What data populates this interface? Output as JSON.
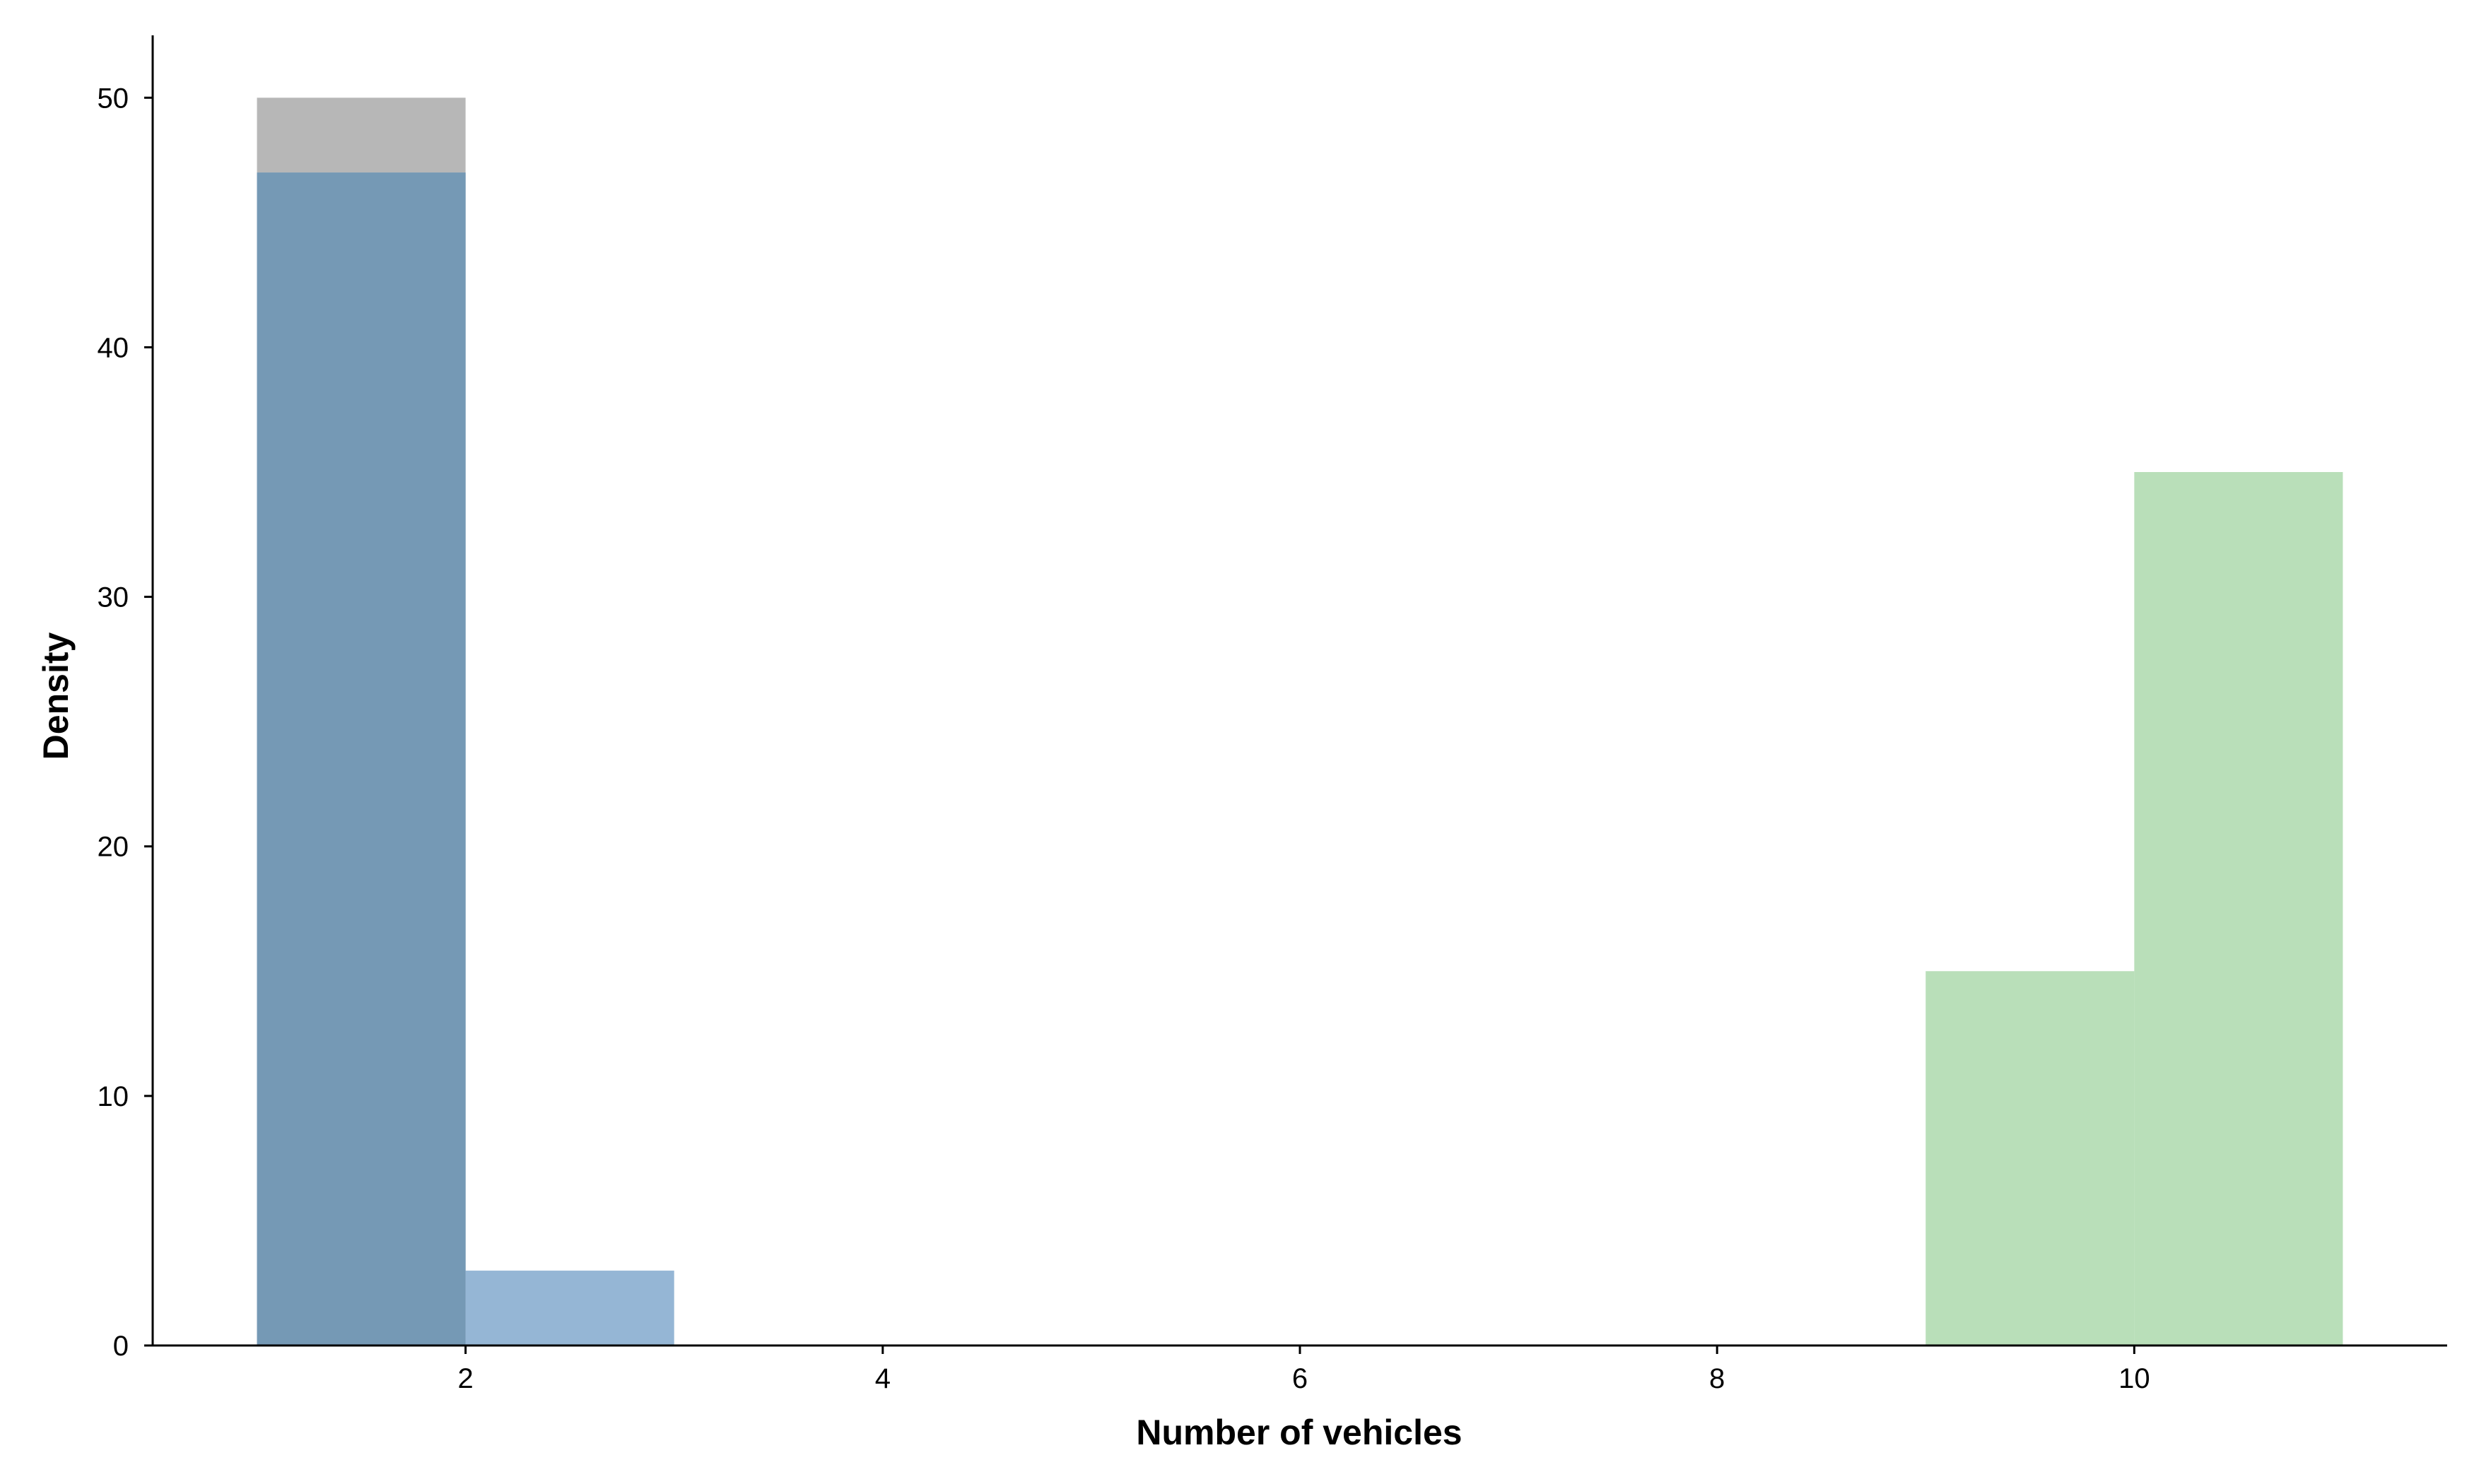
{
  "chart_data": {
    "type": "bar",
    "subtype": "histogram",
    "title": "",
    "xlabel": "Number of vehicles",
    "ylabel": "Density",
    "xlim": [
      0.5,
      11.5
    ],
    "ylim": [
      0,
      52.5
    ],
    "x_ticks": [
      2,
      4,
      6,
      8,
      10
    ],
    "y_ticks": [
      0,
      10,
      20,
      30,
      40,
      50
    ],
    "grid": false,
    "legend": "none",
    "series": [
      {
        "color": "#b3b3b3",
        "bins": [
          {
            "x0": 1,
            "x1": 2,
            "value": 50
          }
        ]
      },
      {
        "color": "#8aaed0",
        "bins": [
          {
            "x0": 1,
            "x1": 2,
            "value": 47
          },
          {
            "x0": 2,
            "x1": 3,
            "value": 3
          }
        ]
      },
      {
        "color": "#b5ddb5",
        "bins": [
          {
            "x0": 9,
            "x1": 10,
            "value": 15
          },
          {
            "x0": 10,
            "x1": 11,
            "value": 35
          }
        ]
      }
    ]
  }
}
